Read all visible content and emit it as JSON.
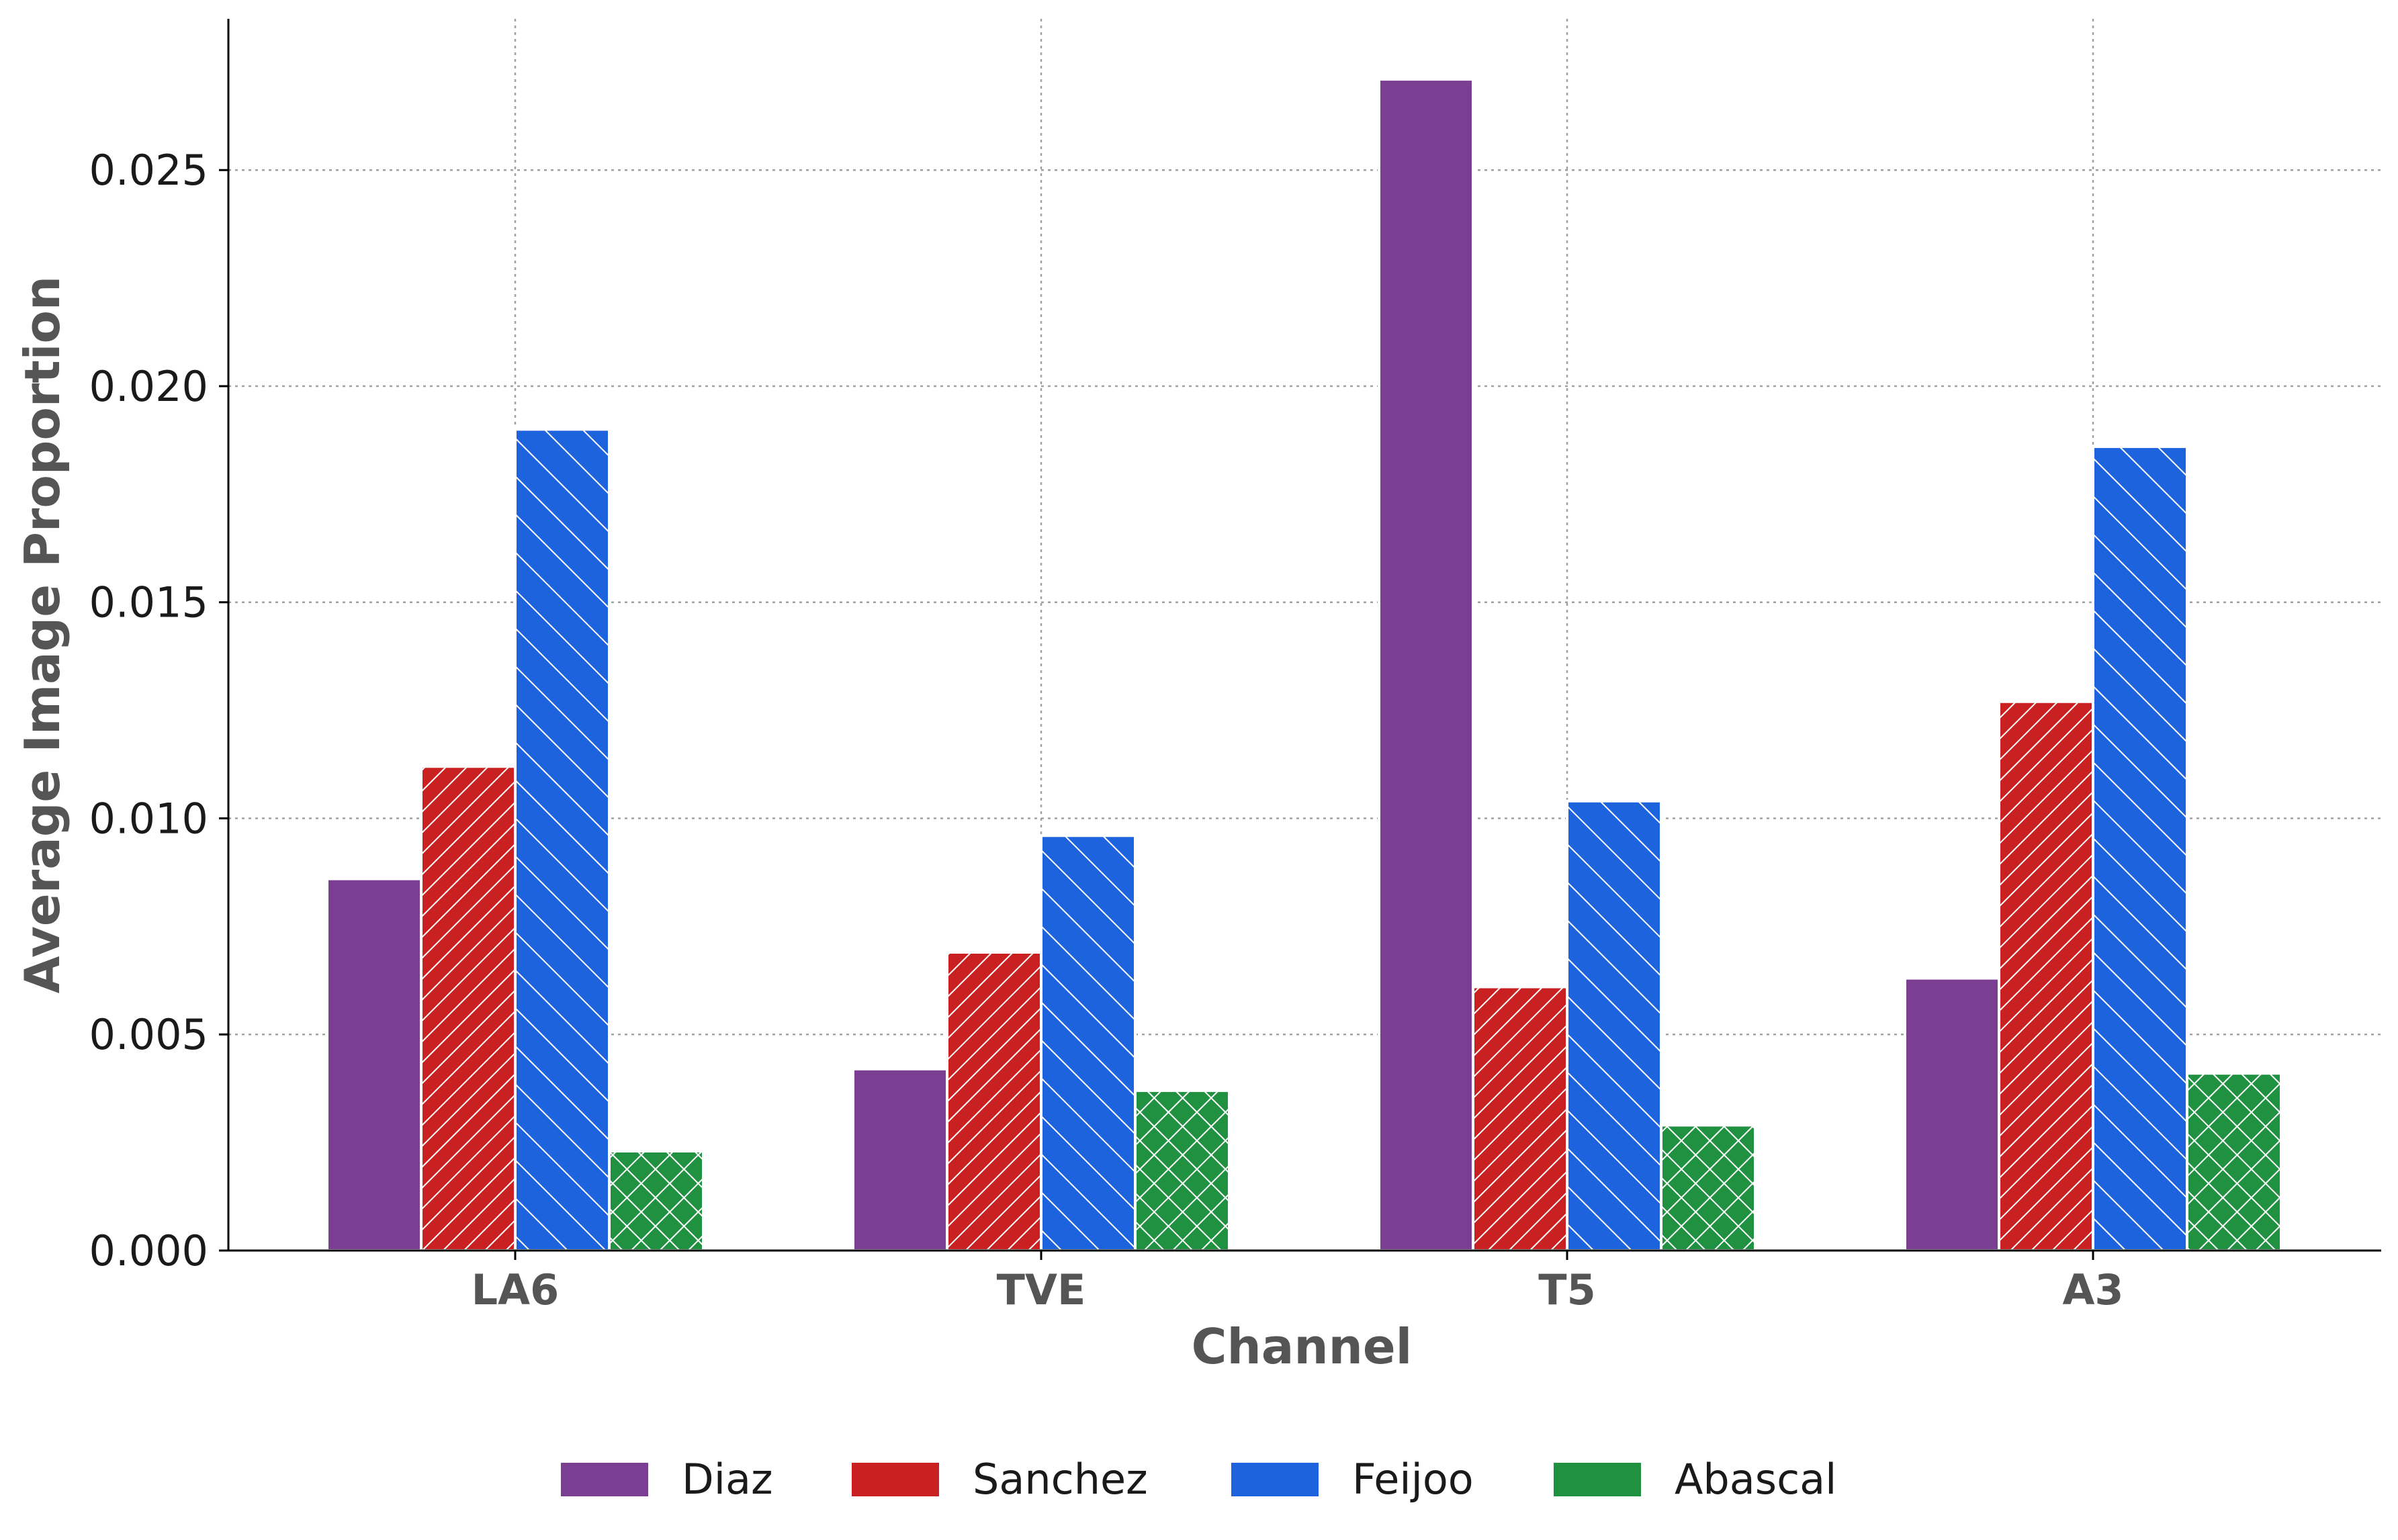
{
  "chart_data": {
    "type": "bar",
    "title": "",
    "xlabel": "Channel",
    "ylabel": "Average Image Proportion",
    "categories": [
      "LA6",
      "TVE",
      "T5",
      "A3"
    ],
    "series": [
      {
        "name": "Diaz",
        "values": [
          0.0086,
          0.0042,
          0.0271,
          0.0063
        ],
        "color": "#7a3f93",
        "pattern": "solid"
      },
      {
        "name": "Sanchez",
        "values": [
          0.0112,
          0.0069,
          0.0061,
          0.0127
        ],
        "color": "#c92121",
        "pattern": "dense-diagonal"
      },
      {
        "name": "Feijoo",
        "values": [
          0.019,
          0.0096,
          0.0104,
          0.0186
        ],
        "color": "#1d63dd",
        "pattern": "back-diagonal"
      },
      {
        "name": "Abascal",
        "values": [
          0.0023,
          0.0037,
          0.0029,
          0.0041
        ],
        "color": "#1f9140",
        "pattern": "crosshatch"
      }
    ],
    "yticks": [
      "0.000",
      "0.005",
      "0.010",
      "0.015",
      "0.020",
      "0.025"
    ],
    "ylim": [
      0,
      0.0285
    ],
    "grid": true,
    "legend_position": "bottom-center"
  }
}
